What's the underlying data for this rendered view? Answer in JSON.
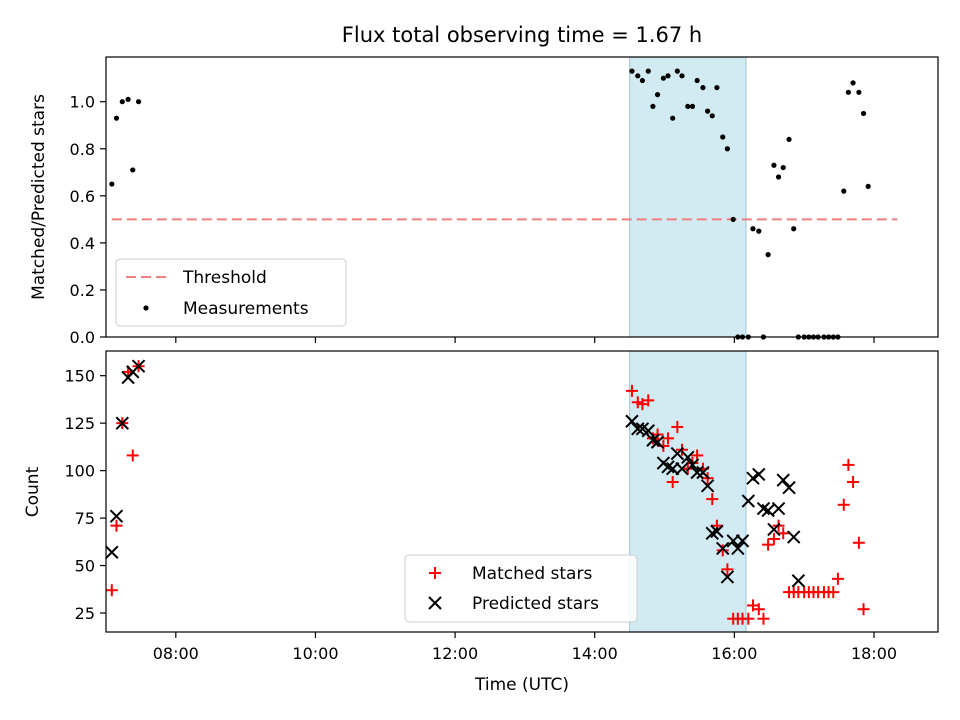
{
  "chart_data": [
    {
      "type": "scatter",
      "title": "Flux total observing time = 1.67 h",
      "ylabel": "Matched/Predicted stars",
      "xlabel": "",
      "xlim": [
        "07:00",
        "18:55"
      ],
      "ylim": [
        0,
        1.19
      ],
      "yticks": [
        "0.0",
        "0.2",
        "0.4",
        "0.6",
        "0.8",
        "1.0"
      ],
      "shaded_span": {
        "start": "14:30",
        "end": "16:10",
        "color": "#add8e6"
      },
      "legend_position": "lower-left",
      "series": [
        {
          "name": "Threshold",
          "style": "dashed-line",
          "color": "#f08080",
          "points": [
            [
              "07:05",
              0.5
            ],
            [
              "18:20",
              0.5
            ]
          ]
        },
        {
          "name": "Measurements",
          "style": "dot",
          "color": "#000000",
          "points": [
            [
              "07:05",
              0.65
            ],
            [
              "07:09",
              0.93
            ],
            [
              "07:14",
              1.0
            ],
            [
              "07:19",
              1.01
            ],
            [
              "07:23",
              0.71
            ],
            [
              "07:28",
              1.0
            ],
            [
              "14:32",
              1.13
            ],
            [
              "14:37",
              1.11
            ],
            [
              "14:41",
              1.09
            ],
            [
              "14:46",
              1.13
            ],
            [
              "14:50",
              0.98
            ],
            [
              "14:54",
              1.03
            ],
            [
              "14:59",
              1.1
            ],
            [
              "15:03",
              1.11
            ],
            [
              "15:07",
              0.93
            ],
            [
              "15:11",
              1.13
            ],
            [
              "15:15",
              1.11
            ],
            [
              "15:20",
              0.98
            ],
            [
              "15:24",
              0.98
            ],
            [
              "15:28",
              1.09
            ],
            [
              "15:33",
              1.06
            ],
            [
              "15:37",
              0.96
            ],
            [
              "15:41",
              0.94
            ],
            [
              "15:45",
              1.06
            ],
            [
              "15:50",
              0.85
            ],
            [
              "15:54",
              0.8
            ],
            [
              "15:59",
              0.5
            ],
            [
              "16:03",
              0.0
            ],
            [
              "16:07",
              0.0
            ],
            [
              "16:12",
              0.0
            ],
            [
              "16:16",
              0.46
            ],
            [
              "16:21",
              0.45
            ],
            [
              "16:25",
              0.0
            ],
            [
              "16:29",
              0.35
            ],
            [
              "16:34",
              0.73
            ],
            [
              "16:38",
              0.68
            ],
            [
              "16:42",
              0.72
            ],
            [
              "16:47",
              0.84
            ],
            [
              "16:51",
              0.46
            ],
            [
              "16:55",
              0.0
            ],
            [
              "17:00",
              0.0
            ],
            [
              "17:04",
              0.0
            ],
            [
              "17:08",
              0.0
            ],
            [
              "17:12",
              0.0
            ],
            [
              "17:17",
              0.0
            ],
            [
              "17:21",
              0.0
            ],
            [
              "17:25",
              0.0
            ],
            [
              "17:29",
              0.0
            ],
            [
              "17:34",
              0.62
            ],
            [
              "17:38",
              1.04
            ],
            [
              "17:42",
              1.08
            ],
            [
              "17:47",
              1.04
            ],
            [
              "17:51",
              0.95
            ],
            [
              "17:55",
              0.64
            ]
          ]
        }
      ]
    },
    {
      "type": "scatter",
      "xlabel": "Time (UTC)",
      "ylabel": "Count",
      "xlim": [
        "07:00",
        "18:55"
      ],
      "ylim": [
        15,
        163
      ],
      "xticks": [
        "08:00",
        "10:00",
        "12:00",
        "14:00",
        "16:00",
        "18:00"
      ],
      "yticks": [
        "25",
        "50",
        "75",
        "100",
        "125",
        "150"
      ],
      "shaded_span": {
        "start": "14:30",
        "end": "16:10",
        "color": "#add8e6"
      },
      "legend_position": "lower-center",
      "series": [
        {
          "name": "Matched stars",
          "marker": "plus",
          "color": "#ff0000",
          "points": [
            [
              "07:05",
              37
            ],
            [
              "07:09",
              71
            ],
            [
              "07:14",
              125
            ],
            [
              "07:19",
              152
            ],
            [
              "07:23",
              108
            ],
            [
              "07:28",
              155
            ],
            [
              "14:32",
              142
            ],
            [
              "14:37",
              136
            ],
            [
              "14:41",
              135
            ],
            [
              "14:46",
              137
            ],
            [
              "14:50",
              117
            ],
            [
              "14:54",
              119
            ],
            [
              "14:59",
              113
            ],
            [
              "15:03",
              117
            ],
            [
              "15:07",
              94
            ],
            [
              "15:11",
              123
            ],
            [
              "15:15",
              111
            ],
            [
              "15:20",
              101
            ],
            [
              "15:24",
              104
            ],
            [
              "15:28",
              108
            ],
            [
              "15:33",
              101
            ],
            [
              "15:37",
              96
            ],
            [
              "15:41",
              85
            ],
            [
              "15:45",
              71
            ],
            [
              "15:50",
              58
            ],
            [
              "15:54",
              48
            ],
            [
              "15:59",
              22
            ],
            [
              "16:03",
              22
            ],
            [
              "16:07",
              22
            ],
            [
              "16:12",
              22
            ],
            [
              "16:16",
              29
            ],
            [
              "16:21",
              27
            ],
            [
              "16:25",
              22
            ],
            [
              "16:29",
              61
            ],
            [
              "16:34",
              64
            ],
            [
              "16:38",
              71
            ],
            [
              "16:42",
              67
            ],
            [
              "16:47",
              36
            ],
            [
              "16:51",
              36
            ],
            [
              "16:55",
              36
            ],
            [
              "17:00",
              36
            ],
            [
              "17:04",
              36
            ],
            [
              "17:08",
              36
            ],
            [
              "17:12",
              36
            ],
            [
              "17:17",
              36
            ],
            [
              "17:21",
              36
            ],
            [
              "17:25",
              36
            ],
            [
              "17:29",
              43
            ],
            [
              "17:34",
              82
            ],
            [
              "17:38",
              103
            ],
            [
              "17:42",
              94
            ],
            [
              "17:47",
              62
            ],
            [
              "17:51",
              27
            ]
          ]
        },
        {
          "name": "Predicted stars",
          "marker": "x",
          "color": "#000000",
          "points": [
            [
              "07:05",
              57
            ],
            [
              "07:09",
              76
            ],
            [
              "07:14",
              125
            ],
            [
              "07:19",
              149
            ],
            [
              "07:23",
              152
            ],
            [
              "07:28",
              155
            ],
            [
              "14:32",
              126
            ],
            [
              "14:37",
              122
            ],
            [
              "14:41",
              122
            ],
            [
              "14:46",
              121
            ],
            [
              "14:50",
              116
            ],
            [
              "14:54",
              115
            ],
            [
              "14:59",
              104
            ],
            [
              "15:03",
              102
            ],
            [
              "15:07",
              101
            ],
            [
              "15:11",
              109
            ],
            [
              "15:15",
              101
            ],
            [
              "15:20",
              107
            ],
            [
              "15:24",
              103
            ],
            [
              "15:28",
              99
            ],
            [
              "15:33",
              99
            ],
            [
              "15:37",
              92
            ],
            [
              "15:41",
              67
            ],
            [
              "15:45",
              68
            ],
            [
              "15:50",
              59
            ],
            [
              "15:54",
              44
            ],
            [
              "15:59",
              63
            ],
            [
              "16:03",
              59
            ],
            [
              "16:07",
              63
            ],
            [
              "16:12",
              84
            ],
            [
              "16:16",
              96
            ],
            [
              "16:21",
              98
            ],
            [
              "16:25",
              80
            ],
            [
              "16:29",
              79
            ],
            [
              "16:34",
              69
            ],
            [
              "16:38",
              80
            ],
            [
              "16:42",
              95
            ],
            [
              "16:47",
              91
            ],
            [
              "16:51",
              65
            ],
            [
              "16:55",
              42
            ]
          ]
        }
      ]
    }
  ]
}
